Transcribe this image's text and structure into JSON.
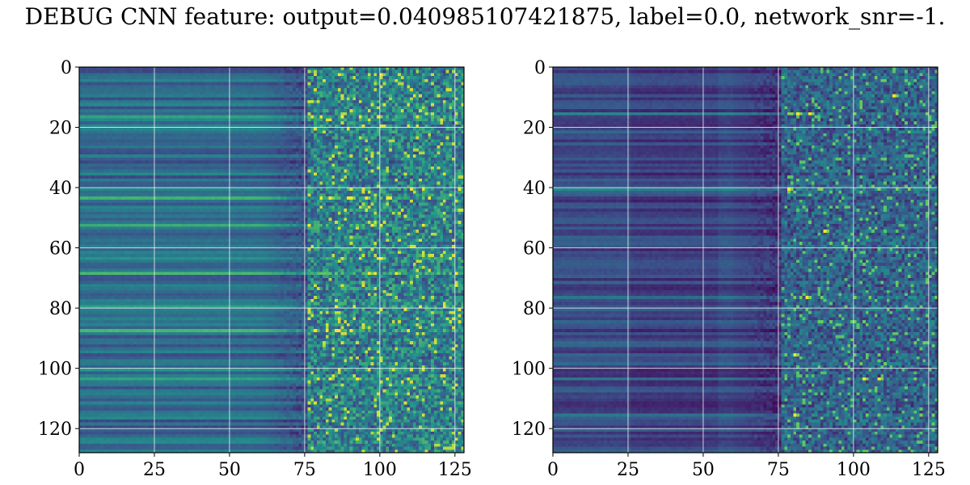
{
  "title": "DEBUG CNN feature: output=0.040985107421875, label=0.0, network_snr=-1.",
  "colormap": [
    "#440154",
    "#3b528b",
    "#21918c",
    "#5ec962",
    "#fde725"
  ],
  "chart_data": [
    {
      "type": "heatmap",
      "rows": 128,
      "cols": 128,
      "xlim": [
        0,
        128
      ],
      "ylim": [
        128,
        0
      ],
      "xticks": [
        "0",
        "25",
        "50",
        "75",
        "100",
        "125"
      ],
      "yticks": [
        "0",
        "20",
        "40",
        "60",
        "80",
        "100",
        "120"
      ],
      "grid": true,
      "description_level": "left map: smooth horizontal bands for columns 0-75, noisy speckled texture for columns 75-128, bright band around row 68 and 103",
      "bright_rows": [
        16,
        43,
        52,
        63,
        68,
        79,
        87,
        100,
        103
      ],
      "bright_spots": [
        [
          83,
          43
        ],
        [
          90,
          43
        ],
        [
          95,
          43
        ],
        [
          99,
          16
        ],
        [
          97,
          52
        ],
        [
          100,
          63
        ],
        [
          96,
          68
        ],
        [
          105,
          68
        ],
        [
          83,
          103
        ],
        [
          92,
          103
        ],
        [
          86,
          2
        ],
        [
          100,
          2
        ]
      ]
    },
    {
      "type": "heatmap",
      "rows": 128,
      "cols": 128,
      "xlim": [
        0,
        128
      ],
      "ylim": [
        128,
        0
      ],
      "xticks": [
        "0",
        "25",
        "50",
        "75",
        "100",
        "125"
      ],
      "yticks": [
        "0",
        "20",
        "40",
        "60",
        "80",
        "100",
        "120"
      ],
      "grid": true,
      "description_level": "right map: darker overall, banded left region, speckled right region",
      "bright_rows": [
        15,
        40,
        76,
        95,
        103,
        115
      ],
      "bright_spots": [
        [
          81,
          15
        ],
        [
          85,
          15
        ],
        [
          78,
          40
        ],
        [
          90,
          54
        ],
        [
          84,
          76
        ],
        [
          80,
          95
        ],
        [
          103,
          103
        ],
        [
          108,
          103
        ],
        [
          113,
          9
        ],
        [
          80,
          115
        ]
      ]
    }
  ]
}
